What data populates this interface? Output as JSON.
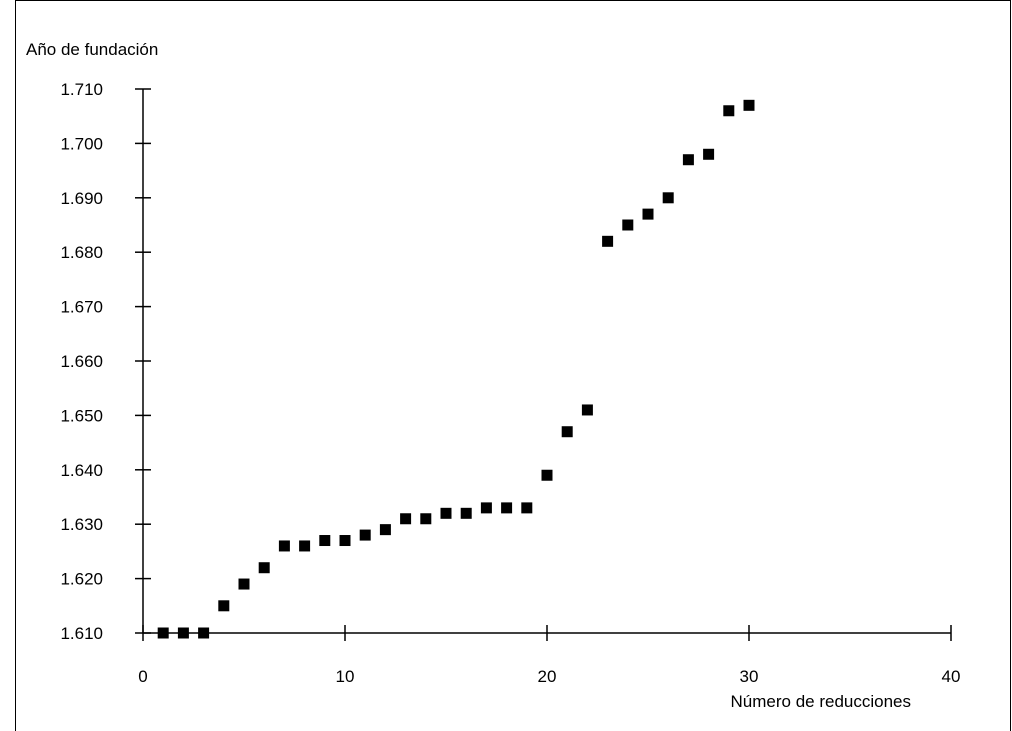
{
  "chart_data": {
    "type": "scatter",
    "title": "",
    "xlabel": "Número de reducciones",
    "ylabel": "Año de fundación",
    "xlim": [
      0,
      40
    ],
    "ylim": [
      1610,
      1710
    ],
    "xticks": [
      0,
      10,
      20,
      30,
      40
    ],
    "xtick_labels": [
      "0",
      "10",
      "20",
      "30",
      "40"
    ],
    "yticks": [
      1610,
      1620,
      1630,
      1640,
      1650,
      1660,
      1670,
      1680,
      1690,
      1700,
      1710
    ],
    "ytick_labels": [
      "1.610",
      "1.620",
      "1.630",
      "1.640",
      "1.650",
      "1.660",
      "1.670",
      "1.680",
      "1.690",
      "1.700",
      "1.710"
    ],
    "grid": false,
    "marker": "square",
    "marker_color": "#000000",
    "series": [
      {
        "x": [
          1,
          2,
          3,
          4,
          5,
          6,
          7,
          8,
          9,
          10,
          11,
          12,
          13,
          14,
          15,
          16,
          17,
          18,
          19,
          20,
          21,
          22,
          23,
          24,
          25,
          26,
          27,
          28,
          29,
          30
        ],
        "y": [
          1610,
          1610,
          1610,
          1615,
          1619,
          1622,
          1626,
          1626,
          1627,
          1627,
          1628,
          1629,
          1631,
          1631,
          1632,
          1632,
          1633,
          1633,
          1633,
          1639,
          1647,
          1651,
          1682,
          1685,
          1687,
          1690,
          1697,
          1698,
          1706,
          1707
        ]
      }
    ]
  }
}
